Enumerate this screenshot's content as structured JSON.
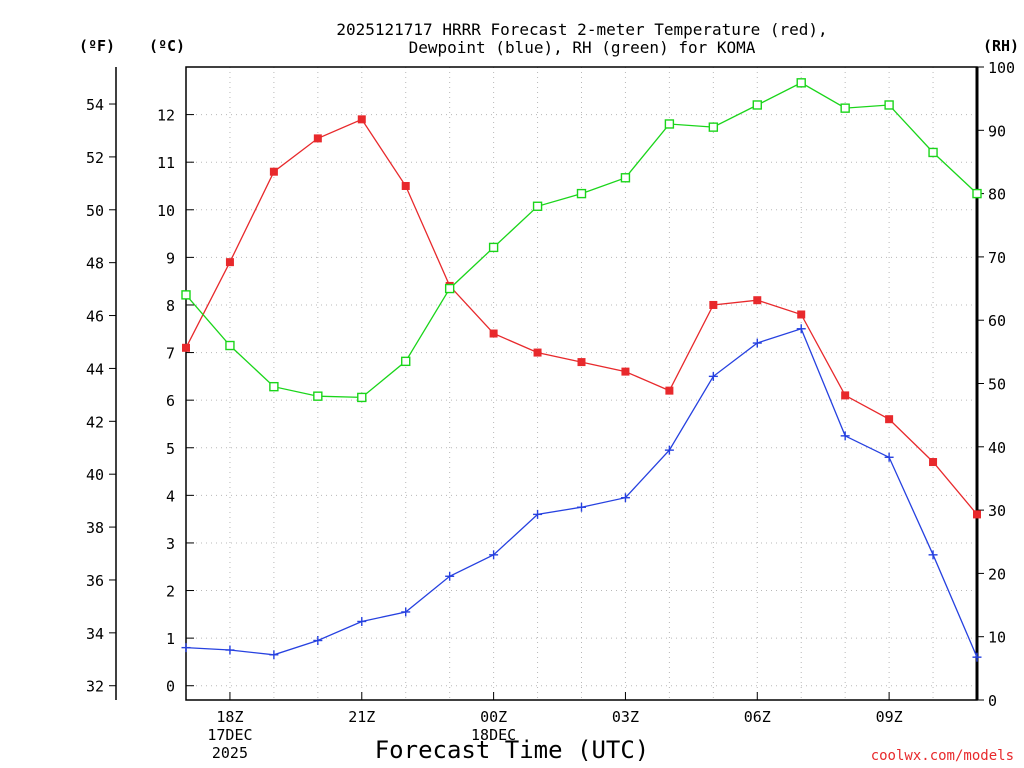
{
  "chart_data": {
    "type": "line",
    "title": "2025121717 HRRR Forecast 2-meter Temperature (red),",
    "title_line2": "Dewpoint (blue), RH (green) for KOMA",
    "xlabel": "Forecast Time (UTC)",
    "credit": "coolwx.com/models",
    "axis_units": {
      "fahrenheit": "(ºF)",
      "celsius": "(ºC)",
      "rh": "(RH)"
    },
    "x_hours": [
      17,
      18,
      19,
      20,
      21,
      22,
      23,
      24,
      25,
      26,
      27,
      28,
      29,
      30,
      31,
      32,
      33,
      34,
      35
    ],
    "x_ticks": [
      {
        "hour": 18,
        "lines": [
          "18Z",
          "17DEC",
          "2025"
        ]
      },
      {
        "hour": 21,
        "lines": [
          "21Z"
        ]
      },
      {
        "hour": 24,
        "lines": [
          "00Z",
          "18DEC"
        ]
      },
      {
        "hour": 27,
        "lines": [
          "03Z"
        ]
      },
      {
        "hour": 30,
        "lines": [
          "06Z"
        ]
      },
      {
        "hour": 33,
        "lines": [
          "09Z"
        ]
      }
    ],
    "xlim": [
      17,
      35
    ],
    "celsius_ylim": [
      -0.3,
      13.0
    ],
    "celsius_ticks": [
      0,
      1,
      2,
      3,
      4,
      5,
      6,
      7,
      8,
      9,
      10,
      11,
      12
    ],
    "fahrenheit_ticks": [
      32,
      34,
      36,
      38,
      40,
      42,
      44,
      46,
      48,
      50,
      52,
      54
    ],
    "rh_ylim": [
      0,
      100
    ],
    "rh_ticks": [
      0,
      10,
      20,
      30,
      40,
      50,
      60,
      70,
      80,
      90,
      100
    ],
    "series": [
      {
        "name": "2-meter Temperature",
        "axis": "celsius",
        "color": "#e8292c",
        "marker": "filled-square",
        "values": [
          7.1,
          8.9,
          10.8,
          11.5,
          11.9,
          10.5,
          8.4,
          7.4,
          7.0,
          6.8,
          6.6,
          6.2,
          8.0,
          8.1,
          7.8,
          6.1,
          5.6,
          4.7,
          3.6
        ]
      },
      {
        "name": "Dewpoint",
        "axis": "celsius",
        "color": "#2641e0",
        "marker": "plus",
        "values": [
          0.8,
          0.75,
          0.65,
          0.95,
          1.35,
          1.55,
          2.3,
          2.75,
          3.6,
          3.75,
          3.95,
          4.95,
          6.5,
          7.2,
          7.5,
          5.25,
          4.8,
          2.75,
          0.6
        ]
      },
      {
        "name": "RH",
        "axis": "rh",
        "color": "#1ad51a",
        "marker": "open-square",
        "values": [
          64,
          56,
          49.5,
          48,
          47.8,
          53.5,
          65,
          71.5,
          78,
          80,
          82.5,
          91,
          90.5,
          94,
          97.5,
          93.5,
          94,
          86.5,
          80
        ]
      }
    ]
  }
}
